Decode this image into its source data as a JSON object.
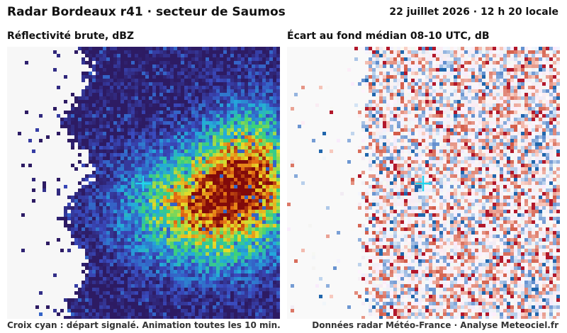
{
  "header": {
    "title": "Radar Bordeaux r41 · secteur de Saumos",
    "datetime": "22 juillet 2026 · 12 h 20 locale"
  },
  "panels": {
    "left": {
      "title": "Réflectivité brute, dBZ",
      "marker": "cross-cyan"
    },
    "right": {
      "title": "Écart au fond médian 08-10 UTC, dB",
      "marker": "cross-cyan"
    }
  },
  "footer": {
    "left": "Croix cyan : départ signalé. Animation toutes les 10 min.",
    "right": "Données radar Météo-France · Analyse Meteociel.fr"
  },
  "colors": {
    "marker": "#22d3ee",
    "reflectivity_background": "#2d1b63",
    "anomaly_positive": "#c0392b",
    "anomaly_negative": "#2c7fb8"
  }
}
